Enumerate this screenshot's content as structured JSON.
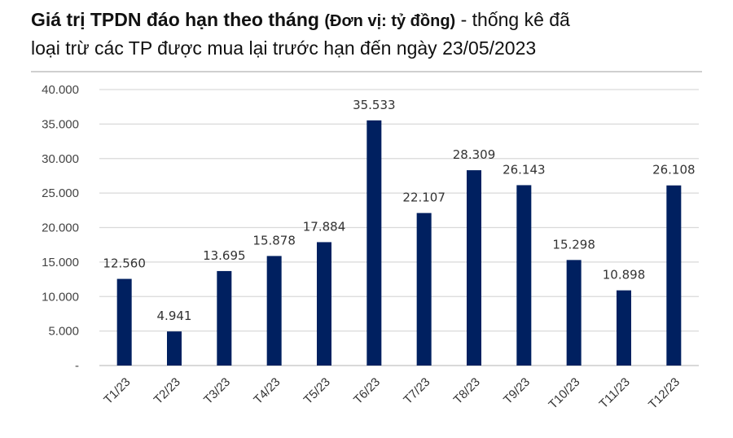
{
  "chart_data": {
    "type": "bar",
    "title_bold": "Giá trị TPDN đáo hạn theo tháng",
    "title_unit": "(Đơn vị: tỷ đồng)",
    "title_rest": " - thống kê đã",
    "subtitle": "loại trừ các TP được mua lại trước hạn đến ngày 23/05/2023",
    "categories": [
      "T1/23",
      "T2/23",
      "T3/23",
      "T4/23",
      "T5/23",
      "T6/23",
      "T7/23",
      "T8/23",
      "T9/23",
      "T10/23",
      "T11/23",
      "T12/23"
    ],
    "values": [
      12560,
      4941,
      13695,
      15878,
      17884,
      35533,
      22107,
      28309,
      26143,
      15298,
      10898,
      26108
    ],
    "data_labels": [
      "12.560",
      "4.941",
      "13.695",
      "15.878",
      "17.884",
      "35.533",
      "22.107",
      "28.309",
      "26.143",
      "15.298",
      "10.898",
      "26.108"
    ],
    "y_ticks": [
      "-",
      "5.000",
      "10.000",
      "15.000",
      "20.000",
      "25.000",
      "30.000",
      "35.000",
      "40.000"
    ],
    "ylim": [
      0,
      40000
    ],
    "grid": true,
    "bar_color": "#002060",
    "grid_color": "#d9d9d9"
  }
}
